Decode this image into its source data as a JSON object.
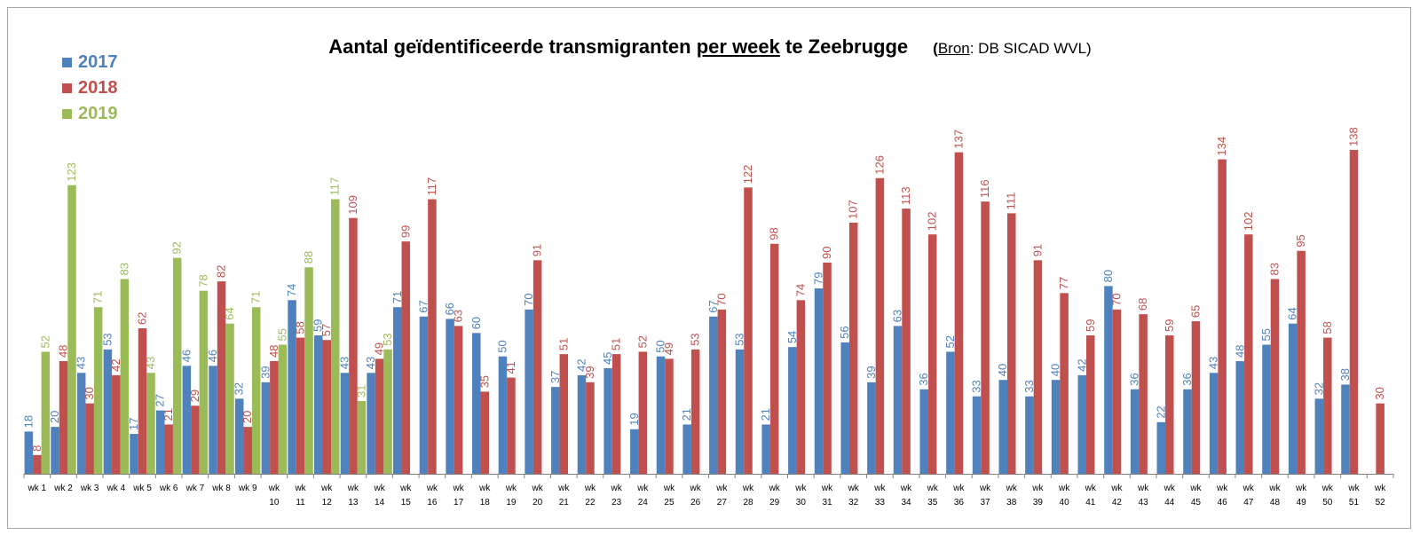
{
  "title": {
    "part1": "Aantal geïdentificeerde transmigranten ",
    "part2": "per week",
    "part3": " te Zeebrugge",
    "source_open": "(",
    "source_label": "Bron",
    "source_rest": ": DB SICAD WVL)"
  },
  "chart_data": {
    "type": "bar",
    "title": "Aantal geïdentificeerde transmigranten per week te Zeebrugge",
    "subtitle": "(Bron: DB SICAD WVL)",
    "categories": [
      "wk 1",
      "wk 2",
      "wk 3",
      "wk 4",
      "wk 5",
      "wk 6",
      "wk 7",
      "wk 8",
      "wk 9",
      "wk 10",
      "wk 11",
      "wk 12",
      "wk 13",
      "wk 14",
      "wk 15",
      "wk 16",
      "wk 17",
      "wk 18",
      "wk 19",
      "wk 20",
      "wk 21",
      "wk 22",
      "wk 23",
      "wk 24",
      "wk 25",
      "wk 26",
      "wk 27",
      "wk 28",
      "wk 29",
      "wk 30",
      "wk 31",
      "wk 32",
      "wk 33",
      "wk 34",
      "wk 35",
      "wk 36",
      "wk 37",
      "wk 38",
      "wk 39",
      "wk 40",
      "wk 41",
      "wk 42",
      "wk 43",
      "wk 44",
      "wk 45",
      "wk 46",
      "wk 47",
      "wk 48",
      "wk 49",
      "wk 50",
      "wk 51",
      "wk 52"
    ],
    "series": [
      {
        "name": "2017",
        "color": "#4f81bd",
        "values": [
          18,
          20,
          43,
          53,
          17,
          27,
          46,
          46,
          32,
          39,
          74,
          59,
          43,
          43,
          71,
          67,
          66,
          60,
          50,
          70,
          37,
          42,
          45,
          19,
          50,
          21,
          67,
          53,
          21,
          54,
          79,
          56,
          39,
          63,
          36,
          52,
          33,
          40,
          33,
          40,
          42,
          80,
          36,
          22,
          36,
          43,
          48,
          55,
          64,
          32,
          38,
          null
        ]
      },
      {
        "name": "2018",
        "color": "#c0504d",
        "values": [
          8,
          48,
          30,
          42,
          62,
          21,
          29,
          82,
          20,
          48,
          58,
          57,
          109,
          49,
          99,
          117,
          63,
          35,
          41,
          91,
          51,
          39,
          51,
          52,
          49,
          53,
          70,
          122,
          98,
          74,
          90,
          107,
          126,
          113,
          102,
          137,
          116,
          111,
          91,
          77,
          59,
          70,
          68,
          59,
          65,
          134,
          102,
          83,
          95,
          58,
          138,
          30
        ]
      },
      {
        "name": "2019",
        "color": "#9bbb59",
        "values": [
          52,
          123,
          71,
          83,
          43,
          92,
          78,
          64,
          71,
          55,
          88,
          117,
          31,
          53,
          null,
          null,
          null,
          null,
          null,
          null,
          null,
          null,
          null,
          null,
          null,
          null,
          null,
          null,
          null,
          null,
          null,
          null,
          null,
          null,
          null,
          null,
          null,
          null,
          null,
          null,
          null,
          null,
          null,
          null,
          null,
          null,
          null,
          null,
          null,
          null,
          null,
          null
        ]
      }
    ],
    "ylim": [
      0,
      150
    ],
    "grid": false,
    "legend": "top-left",
    "data_labels": true
  }
}
